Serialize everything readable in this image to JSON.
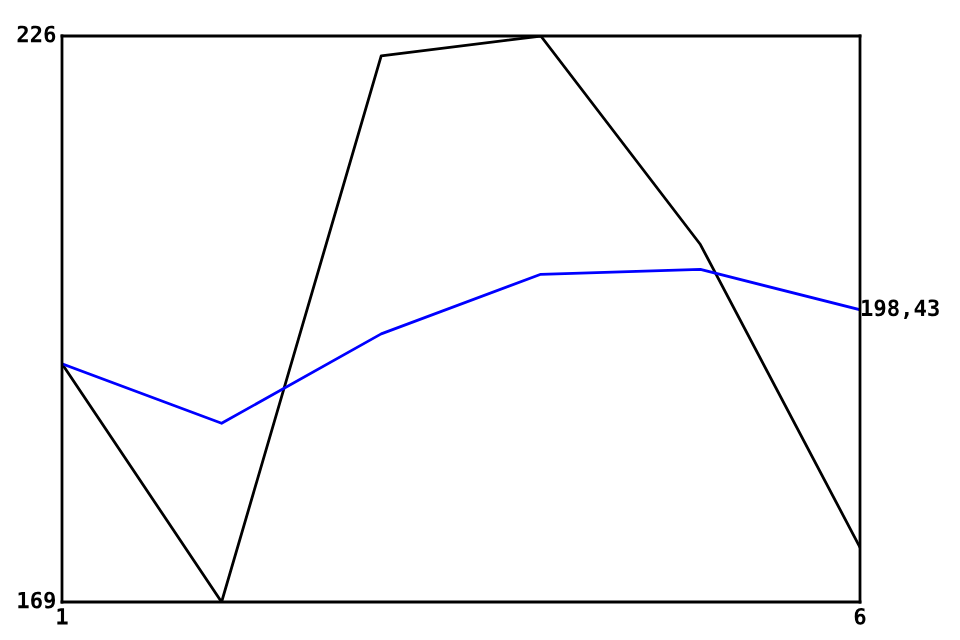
{
  "chart_data": {
    "type": "line",
    "x": [
      1,
      2,
      3,
      4,
      5,
      6
    ],
    "series": [
      {
        "color": "#000000",
        "values": [
          193,
          169,
          224,
          226,
          205,
          174.5
        ]
      },
      {
        "color": "#0000ff",
        "values": [
          193,
          187,
          196,
          202,
          202.5,
          198.43
        ]
      }
    ],
    "xlim": [
      1,
      6
    ],
    "ylim": [
      169,
      226
    ],
    "xticks": [
      1,
      6
    ],
    "yticks": [
      169,
      226
    ],
    "annotations": [
      {
        "text": "198,43",
        "x": 6,
        "y": 198.43
      }
    ],
    "grid": false,
    "legend": false,
    "marker": "none",
    "line_style": "solid"
  }
}
